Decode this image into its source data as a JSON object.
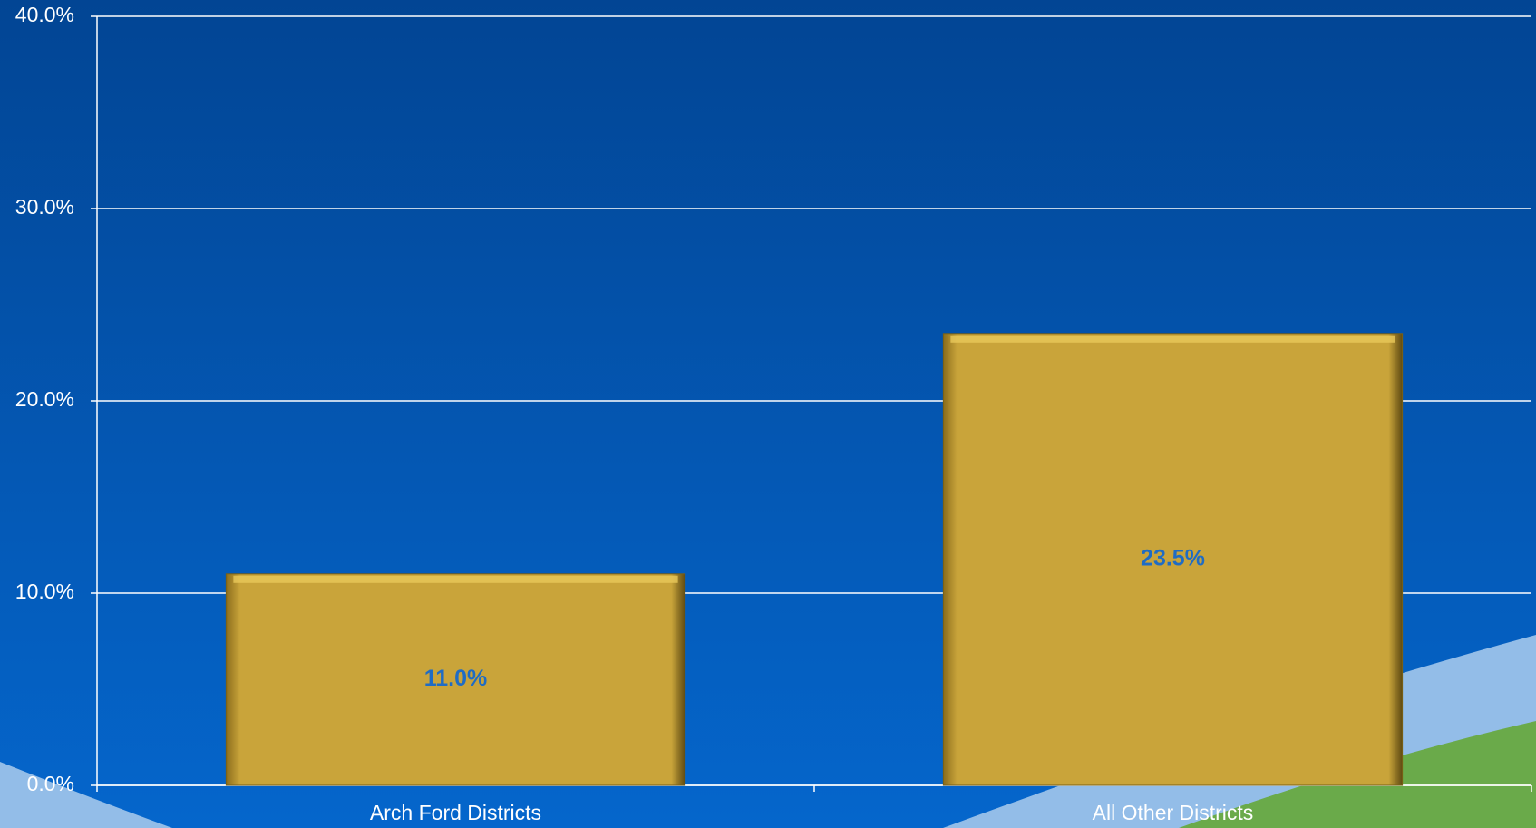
{
  "chart_data": {
    "type": "bar",
    "categories": [
      "Arch Ford Districts",
      "All Other Districts"
    ],
    "values": [
      11.0,
      23.5
    ],
    "value_labels": [
      "11.0%",
      "23.5%"
    ],
    "color": "#c9a43a",
    "ylim": [
      0,
      40
    ],
    "yticks": [
      {
        "value": 0,
        "label": "0.0%"
      },
      {
        "value": 10,
        "label": "10.0%"
      },
      {
        "value": 20,
        "label": "20.0%"
      },
      {
        "value": 30,
        "label": "30.0%"
      },
      {
        "value": 40,
        "label": "40.0%"
      }
    ],
    "grid": true
  }
}
